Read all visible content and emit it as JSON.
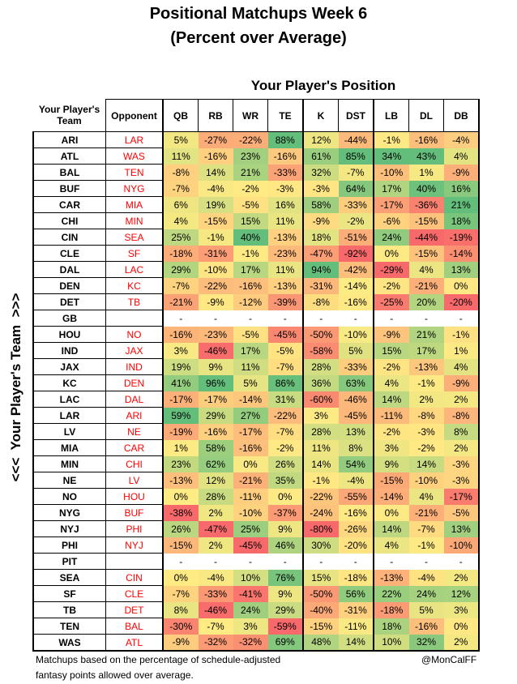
{
  "chart_data": {
    "type": "table",
    "title": "Positional Matchups Week 6",
    "subtitle": "(Percent over Average)",
    "column_group_label": "Your Player's Position",
    "row_axis_label": "<<<  Your Player's Team  >>>",
    "headers": {
      "team": "Your Player's Team",
      "opponent": "Opponent",
      "positions": [
        "QB",
        "RB",
        "WR",
        "TE",
        "K",
        "DST",
        "LB",
        "DL",
        "DB"
      ]
    },
    "color_scale": {
      "low": "#F8696B",
      "mid": "#FFEB84",
      "high": "#63BE7B"
    },
    "opponent_color": "#FF0000",
    "rows": [
      {
        "team": "ARI",
        "opp": "LAR",
        "vals": [
          "5%",
          "-27%",
          "-22%",
          "88%",
          "12%",
          "-44%",
          "-1%",
          "-16%",
          "-4%"
        ]
      },
      {
        "team": "ATL",
        "opp": "WAS",
        "vals": [
          "11%",
          "-16%",
          "23%",
          "-16%",
          "61%",
          "85%",
          "34%",
          "43%",
          "4%"
        ]
      },
      {
        "team": "BAL",
        "opp": "TEN",
        "vals": [
          "-8%",
          "14%",
          "21%",
          "-33%",
          "32%",
          "-7%",
          "-10%",
          "1%",
          "-9%"
        ]
      },
      {
        "team": "BUF",
        "opp": "NYG",
        "vals": [
          "-7%",
          "-4%",
          "-2%",
          "-3%",
          "-3%",
          "64%",
          "17%",
          "40%",
          "16%"
        ]
      },
      {
        "team": "CAR",
        "opp": "MIA",
        "vals": [
          "6%",
          "19%",
          "-5%",
          "16%",
          "58%",
          "-33%",
          "-17%",
          "-36%",
          "21%"
        ]
      },
      {
        "team": "CHI",
        "opp": "MIN",
        "vals": [
          "4%",
          "-15%",
          "15%",
          "11%",
          "-9%",
          "-2%",
          "-6%",
          "-15%",
          "18%"
        ]
      },
      {
        "team": "CIN",
        "opp": "SEA",
        "vals": [
          "25%",
          "-1%",
          "40%",
          "-13%",
          "18%",
          "-51%",
          "24%",
          "-44%",
          "-19%"
        ]
      },
      {
        "team": "CLE",
        "opp": "SF",
        "vals": [
          "-18%",
          "-31%",
          "-1%",
          "-23%",
          "-47%",
          "-92%",
          "0%",
          "-15%",
          "-14%"
        ]
      },
      {
        "team": "DAL",
        "opp": "LAC",
        "vals": [
          "29%",
          "-10%",
          "17%",
          "11%",
          "94%",
          "-42%",
          "-29%",
          "4%",
          "13%"
        ]
      },
      {
        "team": "DEN",
        "opp": "KC",
        "vals": [
          "-7%",
          "-22%",
          "-16%",
          "-13%",
          "-31%",
          "-14%",
          "-2%",
          "-21%",
          "0%"
        ]
      },
      {
        "team": "DET",
        "opp": "TB",
        "vals": [
          "-21%",
          "-9%",
          "-12%",
          "-39%",
          "-8%",
          "-16%",
          "-25%",
          "20%",
          "-20%"
        ]
      },
      {
        "team": "GB",
        "opp": "",
        "vals": [
          "-",
          "-",
          "-",
          "-",
          "-",
          "-",
          "-",
          "-",
          "-"
        ]
      },
      {
        "team": "HOU",
        "opp": "NO",
        "vals": [
          "-16%",
          "-23%",
          "-5%",
          "-45%",
          "-50%",
          "-10%",
          "-9%",
          "21%",
          "-1%"
        ]
      },
      {
        "team": "IND",
        "opp": "JAX",
        "vals": [
          "3%",
          "-46%",
          "17%",
          "-5%",
          "-58%",
          "5%",
          "15%",
          "17%",
          "1%"
        ]
      },
      {
        "team": "JAX",
        "opp": "IND",
        "vals": [
          "19%",
          "9%",
          "11%",
          "-7%",
          "28%",
          "-33%",
          "-2%",
          "-13%",
          "4%"
        ]
      },
      {
        "team": "KC",
        "opp": "DEN",
        "vals": [
          "41%",
          "96%",
          "5%",
          "86%",
          "36%",
          "63%",
          "4%",
          "-1%",
          "-9%"
        ]
      },
      {
        "team": "LAC",
        "opp": "DAL",
        "vals": [
          "-17%",
          "-17%",
          "-14%",
          "31%",
          "-60%",
          "-46%",
          "14%",
          "2%",
          "2%"
        ]
      },
      {
        "team": "LAR",
        "opp": "ARI",
        "vals": [
          "59%",
          "29%",
          "27%",
          "-22%",
          "3%",
          "-45%",
          "-11%",
          "-8%",
          "-8%"
        ]
      },
      {
        "team": "LV",
        "opp": "NE",
        "vals": [
          "-19%",
          "-16%",
          "-17%",
          "-7%",
          "28%",
          "13%",
          "-2%",
          "-3%",
          "8%"
        ]
      },
      {
        "team": "MIA",
        "opp": "CAR",
        "vals": [
          "1%",
          "58%",
          "-16%",
          "-2%",
          "11%",
          "8%",
          "3%",
          "-2%",
          "2%"
        ]
      },
      {
        "team": "MIN",
        "opp": "CHI",
        "vals": [
          "23%",
          "62%",
          "0%",
          "26%",
          "14%",
          "54%",
          "9%",
          "14%",
          "-3%"
        ]
      },
      {
        "team": "NE",
        "opp": "LV",
        "vals": [
          "-13%",
          "12%",
          "-21%",
          "35%",
          "-1%",
          "-4%",
          "-15%",
          "-10%",
          "-3%"
        ]
      },
      {
        "team": "NO",
        "opp": "HOU",
        "vals": [
          "0%",
          "28%",
          "-11%",
          "0%",
          "-22%",
          "-55%",
          "-14%",
          "4%",
          "-17%"
        ]
      },
      {
        "team": "NYG",
        "opp": "BUF",
        "vals": [
          "-38%",
          "2%",
          "-10%",
          "-37%",
          "-24%",
          "-16%",
          "0%",
          "-21%",
          "-5%"
        ]
      },
      {
        "team": "NYJ",
        "opp": "PHI",
        "vals": [
          "26%",
          "-47%",
          "25%",
          "9%",
          "-80%",
          "-26%",
          "14%",
          "-7%",
          "13%"
        ]
      },
      {
        "team": "PHI",
        "opp": "NYJ",
        "vals": [
          "-15%",
          "2%",
          "-45%",
          "46%",
          "30%",
          "-20%",
          "4%",
          "-1%",
          "-10%"
        ]
      },
      {
        "team": "PIT",
        "opp": "",
        "vals": [
          "-",
          "-",
          "-",
          "-",
          "-",
          "-",
          "-",
          "-",
          "-"
        ]
      },
      {
        "team": "SEA",
        "opp": "CIN",
        "vals": [
          "0%",
          "-4%",
          "10%",
          "76%",
          "15%",
          "-18%",
          "-13%",
          "-4%",
          "2%"
        ]
      },
      {
        "team": "SF",
        "opp": "CLE",
        "vals": [
          "-7%",
          "-33%",
          "-41%",
          "9%",
          "-50%",
          "56%",
          "22%",
          "24%",
          "12%"
        ]
      },
      {
        "team": "TB",
        "opp": "DET",
        "vals": [
          "8%",
          "-46%",
          "24%",
          "29%",
          "-40%",
          "-31%",
          "-18%",
          "5%",
          "3%"
        ]
      },
      {
        "team": "TEN",
        "opp": "BAL",
        "vals": [
          "-30%",
          "-7%",
          "3%",
          "-59%",
          "-15%",
          "-11%",
          "18%",
          "-16%",
          "0%"
        ]
      },
      {
        "team": "WAS",
        "opp": "ATL",
        "vals": [
          "-9%",
          "-32%",
          "-32%",
          "69%",
          "48%",
          "14%",
          "10%",
          "32%",
          "2%"
        ]
      }
    ]
  },
  "footer": {
    "line1": "Matchups based on the percentage of schedule-adjusted",
    "line2": "fantasy points allowed over average.",
    "credit": "@MonCalFF"
  }
}
